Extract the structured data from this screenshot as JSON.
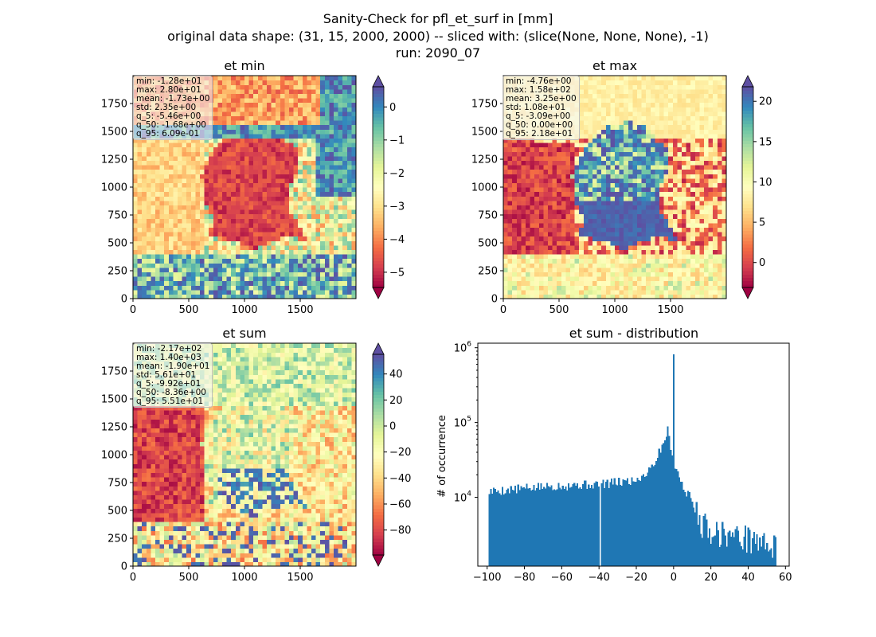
{
  "figure": {
    "suptitle_lines": [
      "Sanity-Check for pfl_et_surf in [mm]",
      "original data shape: (31, 15, 2000, 2000) -- sliced with: (slice(None, None, None), -1)",
      "run: 2090_07"
    ]
  },
  "colormap": {
    "name": "Spectral",
    "stops": [
      "#9e0142",
      "#d53e4f",
      "#f46d43",
      "#fdae61",
      "#fee08b",
      "#ffffbf",
      "#e6f598",
      "#abdda4",
      "#66c2a5",
      "#3288bd",
      "#5e4fa2"
    ]
  },
  "chart_data": [
    {
      "type": "heatmap",
      "title": "et min",
      "xlim": [
        0,
        2000
      ],
      "ylim": [
        0,
        2000
      ],
      "xticks": [
        "0",
        "500",
        "1000",
        "1500"
      ],
      "yticks": [
        "0",
        "250",
        "500",
        "750",
        "1000",
        "1250",
        "1500",
        "1750"
      ],
      "colorbar_range": [
        -5.46,
        0.609
      ],
      "colorbar_ticks": [
        "0",
        "−1",
        "−2",
        "−3",
        "−4",
        "−5"
      ],
      "colorbar_extend": "both",
      "stats": [
        "min: -1.28e+01",
        "max: 2.80e+01",
        "mean: -1.73e+00",
        "std: 2.35e+00",
        "q_5: -5.46e+00",
        "q_50: -1.68e+00",
        "q_95: 6.09e-01"
      ]
    },
    {
      "type": "heatmap",
      "title": "et max",
      "xlim": [
        0,
        2000
      ],
      "ylim": [
        0,
        2000
      ],
      "xticks": [
        "0",
        "500",
        "1000",
        "1500"
      ],
      "yticks": [
        "0",
        "250",
        "500",
        "750",
        "1000",
        "1250",
        "1500",
        "1750"
      ],
      "colorbar_range": [
        -3.09,
        21.8
      ],
      "colorbar_ticks": [
        "20",
        "15",
        "10",
        "5",
        "0"
      ],
      "colorbar_extend": "both",
      "stats": [
        "min: -4.76e+00",
        "max: 1.58e+02",
        "mean: 3.25e+00",
        "std: 1.08e+01",
        "q_5: -3.09e+00",
        "q_50: 0.00e+00",
        "q_95: 2.18e+01"
      ]
    },
    {
      "type": "heatmap",
      "title": "et sum",
      "xlim": [
        0,
        2000
      ],
      "ylim": [
        0,
        2000
      ],
      "xticks": [
        "0",
        "500",
        "1000",
        "1500"
      ],
      "yticks": [
        "0",
        "250",
        "500",
        "750",
        "1000",
        "1250",
        "1500",
        "1750"
      ],
      "colorbar_range": [
        -99.2,
        55.1
      ],
      "colorbar_ticks": [
        "40",
        "20",
        "0",
        "−20",
        "−40",
        "−60",
        "−80"
      ],
      "colorbar_extend": "both",
      "stats": [
        "min: -2.17e+02",
        "max: 1.40e+03",
        "mean: -1.90e+01",
        "std: 5.61e+01",
        "q_5: -9.92e+01",
        "q_50: -8.36e+00",
        "q_95: 5.51e+01"
      ]
    },
    {
      "type": "bar",
      "title": "et sum - distribution",
      "ylabel": "# of occurrence",
      "xlabel": "",
      "yscale": "log",
      "bar_color": "#1f77b4",
      "xlim": [
        -105,
        62
      ],
      "ylim": [
        1200,
        1150000
      ],
      "xticks": [
        "−100",
        "−80",
        "−60",
        "−40",
        "−20",
        "0",
        "20",
        "40",
        "60"
      ],
      "yticks": [
        "10^4",
        "10^5",
        "10^6"
      ],
      "bin_range": [
        -99.2,
        55.1
      ],
      "bin_count": 200,
      "profile_x": [
        -99,
        -60,
        -40,
        -39.5,
        -20,
        -15,
        -10,
        -6,
        -4,
        -3,
        -2,
        -1,
        -0.6,
        -0.4,
        0,
        2,
        5,
        10,
        14,
        20,
        30,
        40,
        55
      ],
      "profile_y": [
        12000,
        14500,
        15000,
        15000,
        17000,
        21000,
        30000,
        50000,
        70000,
        80000,
        55000,
        42000,
        40000,
        820000,
        30000,
        22000,
        14000,
        9000,
        5000,
        3800,
        3200,
        3000,
        2200
      ],
      "notable_bins": {
        "peak_x": -0.4,
        "peak_y": 820000,
        "gap_x": -39.6
      }
    }
  ]
}
